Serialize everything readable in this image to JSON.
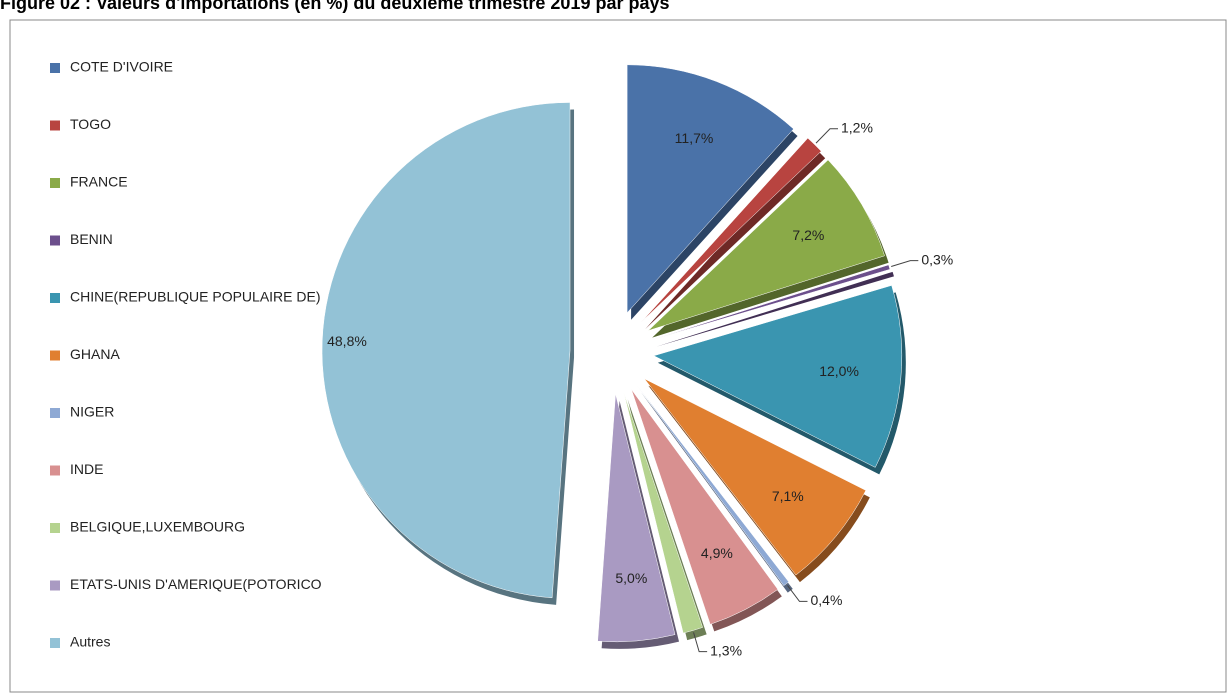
{
  "chart_data": {
    "type": "pie",
    "title": "Figure 02 : Valeurs d'importations (en %) du deuxième trimestre 2019 par pays",
    "categories": [
      "COTE D'IVOIRE",
      "TOGO",
      "FRANCE",
      "BENIN",
      "CHINE(REPUBLIQUE POPULAIRE DE)",
      "GHANA",
      "NIGER",
      "INDE",
      "BELGIQUE,LUXEMBOURG",
      "ETATS-UNIS D'AMERIQUE(POTORICO",
      "Autres"
    ],
    "values": [
      11.7,
      1.2,
      7.2,
      0.3,
      12.0,
      7.1,
      0.4,
      4.9,
      1.3,
      5.0,
      48.8
    ],
    "value_labels": [
      "11,7%",
      "1,2%",
      "7,2%",
      "0,3%",
      "12,0%",
      "7,1%",
      "0,4%",
      "4,9%",
      "1,3%",
      "5,0%",
      "48,8%"
    ],
    "colors": [
      "#4a72a8",
      "#b84440",
      "#8aaa48",
      "#6c4f8c",
      "#3a95b0",
      "#e07f30",
      "#8ea9d4",
      "#d89090",
      "#b5d38f",
      "#a99ac2",
      "#93c2d6"
    ],
    "legend": "left"
  }
}
